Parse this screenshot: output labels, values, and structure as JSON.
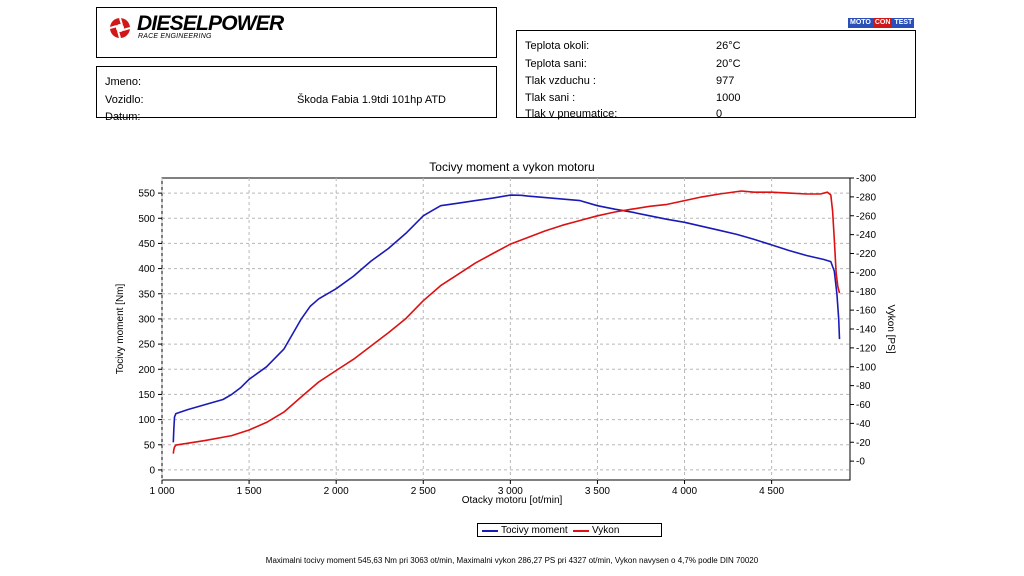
{
  "header": {
    "brand_name": "DIESELPOWER",
    "brand_tagline": "RACE ENGINEERING",
    "partner_logo": {
      "part1": "MOTO",
      "part2": "CON",
      "part3": "TEST"
    }
  },
  "client": {
    "name_label": "Jmeno:",
    "name_value": "",
    "vehicle_label": "Vozidlo:",
    "vehicle_value": "Škoda Fabia 1.9tdi 101hp ATD",
    "date_label": "Datum:",
    "date_value": ""
  },
  "conditions": {
    "ambient_temp_label": "Teplota okoli:",
    "ambient_temp_value": "26°C",
    "intake_temp_label": "Teplota sani:",
    "intake_temp_value": "20°C",
    "air_pressure_label": "Tlak vzduchu :",
    "air_pressure_value": "977",
    "intake_pressure_label": "Tlak sani :",
    "intake_pressure_value": "1000",
    "tire_pressure_label": "Tlak v pneumatice:",
    "tire_pressure_value": "0"
  },
  "chart_data": {
    "type": "line",
    "title": "Tocivy moment a vykon motoru",
    "xlabel": "Otacky motoru [ot/min]",
    "ylabel_left": "Tocivy moment [Nm]",
    "ylabel_right": "Vykon [PS]",
    "xlim": [
      1000,
      4950
    ],
    "ylim_left": [
      -20,
      580
    ],
    "ylim_right": [
      -20,
      300
    ],
    "x_ticks": [
      "1 000",
      "1 500",
      "2 000",
      "2 500",
      "3 000",
      "3 500",
      "4 000",
      "4 500"
    ],
    "y_ticks_left": [
      "0",
      "50",
      "100",
      "150",
      "200",
      "250",
      "300",
      "350",
      "400",
      "450",
      "500",
      "550"
    ],
    "y_ticks_right": [
      "0",
      "20",
      "40",
      "60",
      "80",
      "100",
      "120",
      "140",
      "160",
      "180",
      "200",
      "220",
      "240",
      "260",
      "280",
      "300"
    ],
    "grid": true,
    "legend": "bottom-center",
    "colors": {
      "torque": "#1a1ab8",
      "power": "#dd1111"
    },
    "series": [
      {
        "name": "Tocivy moment",
        "axis": "left",
        "x": [
          1065,
          1068,
          1072,
          1080,
          1150,
          1250,
          1350,
          1400,
          1450,
          1500,
          1600,
          1700,
          1800,
          1850,
          1900,
          2000,
          2100,
          2200,
          2300,
          2400,
          2500,
          2550,
          2600,
          2700,
          2800,
          2900,
          3000,
          3063,
          3100,
          3200,
          3300,
          3400,
          3500,
          3600,
          3700,
          3800,
          3900,
          4000,
          4100,
          4200,
          4300,
          4400,
          4500,
          4600,
          4700,
          4800,
          4840,
          4860,
          4875,
          4885,
          4890
        ],
        "y": [
          55,
          80,
          105,
          112,
          120,
          130,
          140,
          150,
          163,
          180,
          205,
          240,
          300,
          325,
          340,
          360,
          385,
          415,
          440,
          470,
          505,
          515,
          525,
          530,
          535,
          540,
          546,
          545.6,
          544,
          541,
          538,
          535,
          525,
          518,
          512,
          505,
          498,
          492,
          484,
          476,
          468,
          458,
          447,
          436,
          426,
          418,
          414,
          395,
          350,
          300,
          260
        ]
      },
      {
        "name": "Vykon",
        "axis": "right",
        "x": [
          1065,
          1068,
          1072,
          1080,
          1150,
          1250,
          1400,
          1500,
          1600,
          1700,
          1800,
          1900,
          2000,
          2100,
          2200,
          2300,
          2400,
          2500,
          2600,
          2700,
          2800,
          2900,
          3000,
          3100,
          3200,
          3300,
          3400,
          3500,
          3600,
          3700,
          3800,
          3900,
          4000,
          4100,
          4200,
          4327,
          4400,
          4500,
          4600,
          4700,
          4780,
          4820,
          4840,
          4850,
          4860,
          4870,
          4880,
          4890
        ],
        "y": [
          8,
          12,
          15,
          17,
          19,
          22,
          27,
          33,
          41,
          52,
          68,
          84,
          96,
          108,
          122,
          136,
          151,
          170,
          186,
          198,
          210,
          220,
          230,
          237,
          244,
          250,
          255,
          260,
          264,
          267,
          270,
          272,
          276,
          280,
          283,
          286.27,
          285,
          285,
          284,
          283,
          283,
          285,
          282,
          265,
          235,
          200,
          185,
          178
        ]
      }
    ]
  },
  "footer": {
    "summary": "Maximalni tocivy moment 545,63 Nm pri 3063 ot/min,  Maximalni vykon 286,27 PS pri 4327 ot/min,  Vykon navysen o 4,7% podle DIN 70020"
  }
}
